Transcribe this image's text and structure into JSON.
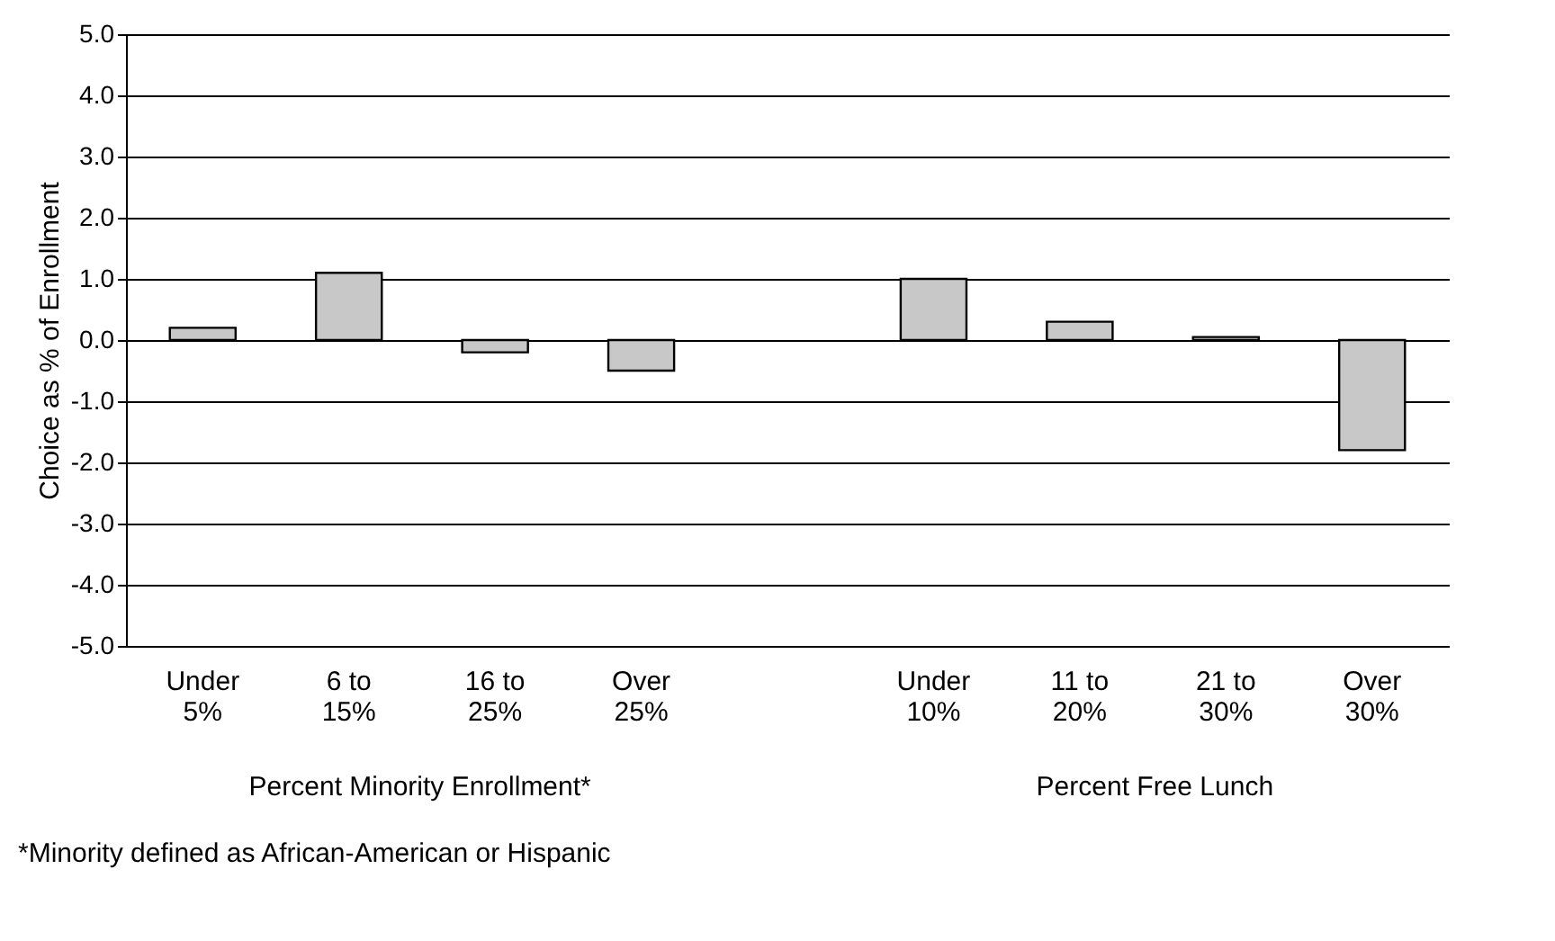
{
  "chart_data": {
    "type": "bar",
    "ylabel": "Choice as % of Enrollment",
    "categories": [
      "Under 5%",
      "6 to 15%",
      "16 to 25%",
      "Over 25%",
      null,
      "Under 10%",
      "11 to 20%",
      "21 to 30%",
      "Over 30%"
    ],
    "values": [
      0.2,
      1.1,
      -0.2,
      -0.5,
      null,
      1.0,
      0.3,
      0.05,
      -1.8
    ],
    "color": "#c8c8c8",
    "ylim": [
      -5,
      5
    ],
    "yticks": [
      {
        "value": -5,
        "label": "-5.0"
      },
      {
        "value": -4,
        "label": "-4.0"
      },
      {
        "value": -3,
        "label": "-3.0"
      },
      {
        "value": -2,
        "label": "-2.0"
      },
      {
        "value": -1,
        "label": "-1.0"
      },
      {
        "value": 0,
        "label": "0.0"
      },
      {
        "value": 1,
        "label": "1.0"
      },
      {
        "value": 2,
        "label": "2.0"
      },
      {
        "value": 3,
        "label": "3.0"
      },
      {
        "value": 4,
        "label": "4.0"
      },
      {
        "value": 5,
        "label": "5.0"
      }
    ],
    "grid": "y",
    "annotations": [
      "Percent Minority Enrollment*",
      "Percent Free Lunch",
      "*Minority defined as African-American or Hispanic"
    ]
  }
}
